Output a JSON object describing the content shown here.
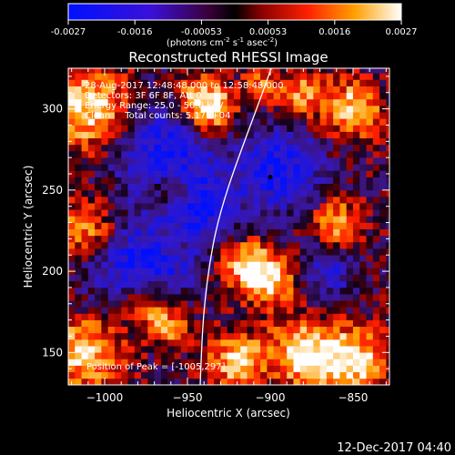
{
  "chart_data": {
    "type": "heatmap",
    "title": "Reconstructed RHESSI Image",
    "xlabel": "Heliocentric X (arcsec)",
    "ylabel": "Heliocentric Y (arcsec)",
    "xlim": [
      -1022,
      -828
    ],
    "ylim": [
      130,
      325
    ],
    "x_ticks": [
      -1000,
      -950,
      -900,
      -850
    ],
    "y_ticks": [
      150,
      200,
      250,
      300
    ],
    "colorbar": {
      "ticks": [
        "-0.0027",
        "-0.0016",
        "-0.00053",
        "0.00053",
        "0.0016",
        "0.0027"
      ],
      "unit_label": "(photons cm",
      "range": [
        -0.0027,
        0.0027
      ]
    },
    "info_lines": [
      "28-Aug-2017 12:48:48.000 to 12:58:48.000",
      "Detectors: 3F 6F 8F, Att 0",
      "Energy Range: 25.0 - 50.0 keV",
      "Clean     Total counts: 5.17E+04"
    ],
    "peak_label": "Position of Peak = [-1005,297]",
    "peak_position": [
      -1005,
      297
    ],
    "limb_marker_point": [
      -900,
      258
    ],
    "footer_date": "12-Dec-2017 04:40"
  }
}
